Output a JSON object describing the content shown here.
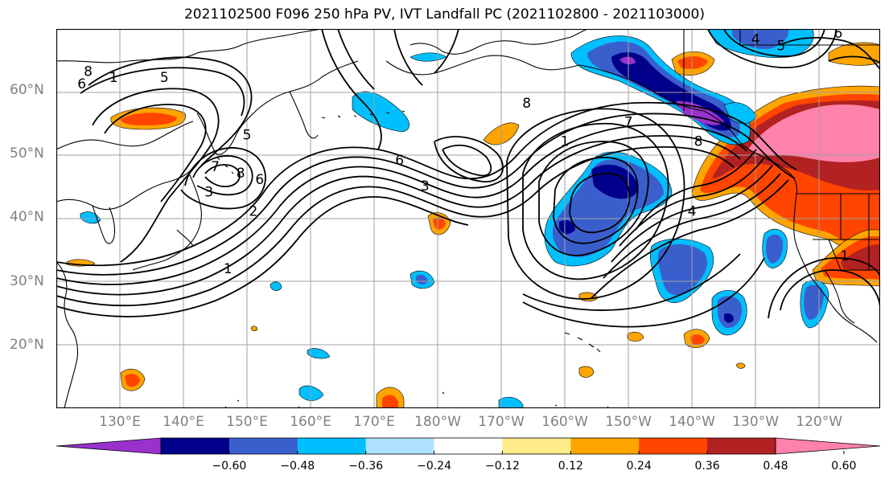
{
  "title": "2021102500 F096 250 hPa PV, IVT Landfall PC (2021102800 - 2021103000)",
  "lon_labels": [
    {
      "text": "130°E",
      "lon": 130
    },
    {
      "text": "140°E",
      "lon": 140
    },
    {
      "text": "150°E",
      "lon": 150
    },
    {
      "text": "160°E",
      "lon": 160
    },
    {
      "text": "170°E",
      "lon": 170
    },
    {
      "text": "180°W",
      "lon": 180
    },
    {
      "text": "170°W",
      "lon": 190
    },
    {
      "text": "160°W",
      "lon": 200
    },
    {
      "text": "150°W",
      "lon": 210
    },
    {
      "text": "140°W",
      "lon": 220
    },
    {
      "text": "130°W",
      "lon": 230
    },
    {
      "text": "120°W",
      "lon": 240
    }
  ],
  "lat_labels": [
    {
      "text": "60°N",
      "lat": 60
    },
    {
      "text": "50°N",
      "lat": 50
    },
    {
      "text": "40°N",
      "lat": 40
    },
    {
      "text": "30°N",
      "lat": 30
    },
    {
      "text": "20°N",
      "lat": 20
    }
  ],
  "colorbar": {
    "colors": [
      "#9932cc",
      "#00008b",
      "#3a5fcd",
      "#00bfff",
      "#b0e2ff",
      "#ffffff",
      "#ffec8b",
      "#ffa500",
      "#ff4500",
      "#b22222",
      "#ff82ab"
    ],
    "tick_labels": [
      "−0.60",
      "−0.48",
      "−0.36",
      "−0.24",
      "−0.12",
      "0.12",
      "0.24",
      "0.36",
      "0.48",
      "0.60"
    ]
  },
  "contour_labels": [
    {
      "text": "8",
      "lon": 125,
      "lat": 63
    },
    {
      "text": "1",
      "lon": 129,
      "lat": 62
    },
    {
      "text": "6",
      "lon": 124,
      "lat": 61
    },
    {
      "text": "5",
      "lon": 137,
      "lat": 62
    },
    {
      "text": "5",
      "lon": 150,
      "lat": 53
    },
    {
      "text": "7",
      "lon": 145,
      "lat": 48
    },
    {
      "text": "8",
      "lon": 149,
      "lat": 47
    },
    {
      "text": "6",
      "lon": 152,
      "lat": 46
    },
    {
      "text": "3",
      "lon": 144,
      "lat": 44
    },
    {
      "text": "2",
      "lon": 151,
      "lat": 41
    },
    {
      "text": "1",
      "lon": 147,
      "lat": 32
    },
    {
      "text": "6",
      "lon": 174,
      "lat": 49
    },
    {
      "text": "3",
      "lon": 178,
      "lat": 45
    },
    {
      "text": "8",
      "lon": 194,
      "lat": 58
    },
    {
      "text": "1",
      "lon": 200,
      "lat": 52
    },
    {
      "text": "7",
      "lon": 210,
      "lat": 55
    },
    {
      "text": "8",
      "lon": 221,
      "lat": 52
    },
    {
      "text": "4",
      "lon": 220,
      "lat": 41
    },
    {
      "text": "4",
      "lon": 230,
      "lat": 68
    },
    {
      "text": "5",
      "lon": 234,
      "lat": 67
    },
    {
      "text": "6",
      "lon": 243,
      "lat": 69
    },
    {
      "text": "1",
      "lon": 244,
      "lat": 34
    }
  ]
}
